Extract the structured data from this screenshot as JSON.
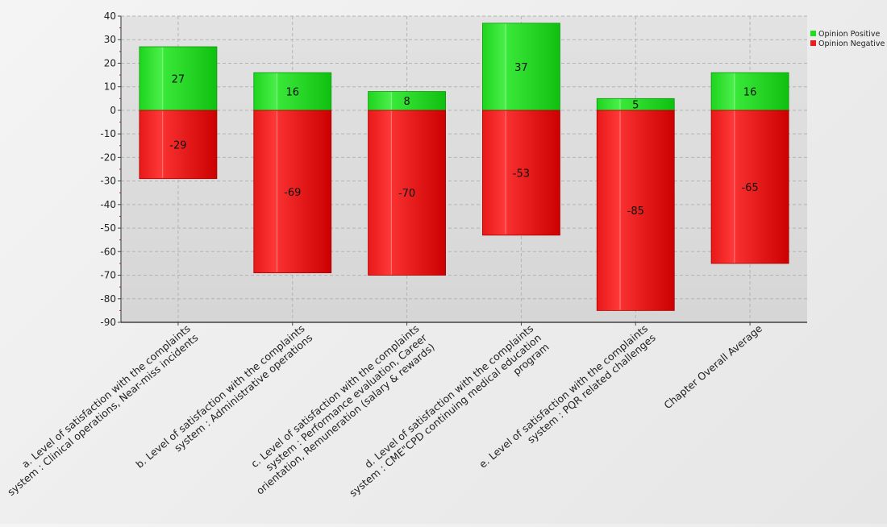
{
  "chart_data": {
    "type": "bar",
    "stacked": true,
    "categories": [
      [
        "a. Level of satisfaction with the complaints",
        "system : Clinical operations, Near-miss incidents"
      ],
      [
        "b. Level of satisfaction with the complaints",
        "system : Administrative operations"
      ],
      [
        "c. Level of satisfaction with the complaints",
        "system : Performance evaluation, Career",
        "orientation, Remuneration (salary & rewards)"
      ],
      [
        "d. Level of satisfaction with the complaints",
        "system : CME\"CPD continuing medical education",
        "program"
      ],
      [
        "e. Level of satisfaction with the complaints",
        "system : PQR related challenges"
      ],
      [
        "Chapter Overall Average"
      ]
    ],
    "series": [
      {
        "name": "Opinion Positive",
        "color": "#22dd22",
        "values": [
          27,
          16,
          8,
          37,
          5,
          16
        ]
      },
      {
        "name": "Opinion Negative",
        "color": "#ee1c1c",
        "values": [
          -29,
          -69,
          -70,
          -53,
          -85,
          -65
        ]
      }
    ],
    "ylim": [
      -90,
      40
    ],
    "yticks": [
      40,
      30,
      20,
      10,
      0,
      -10,
      -20,
      -30,
      -40,
      -50,
      -60,
      -70,
      -80,
      -90
    ],
    "grid": true,
    "legend": "top-right"
  }
}
